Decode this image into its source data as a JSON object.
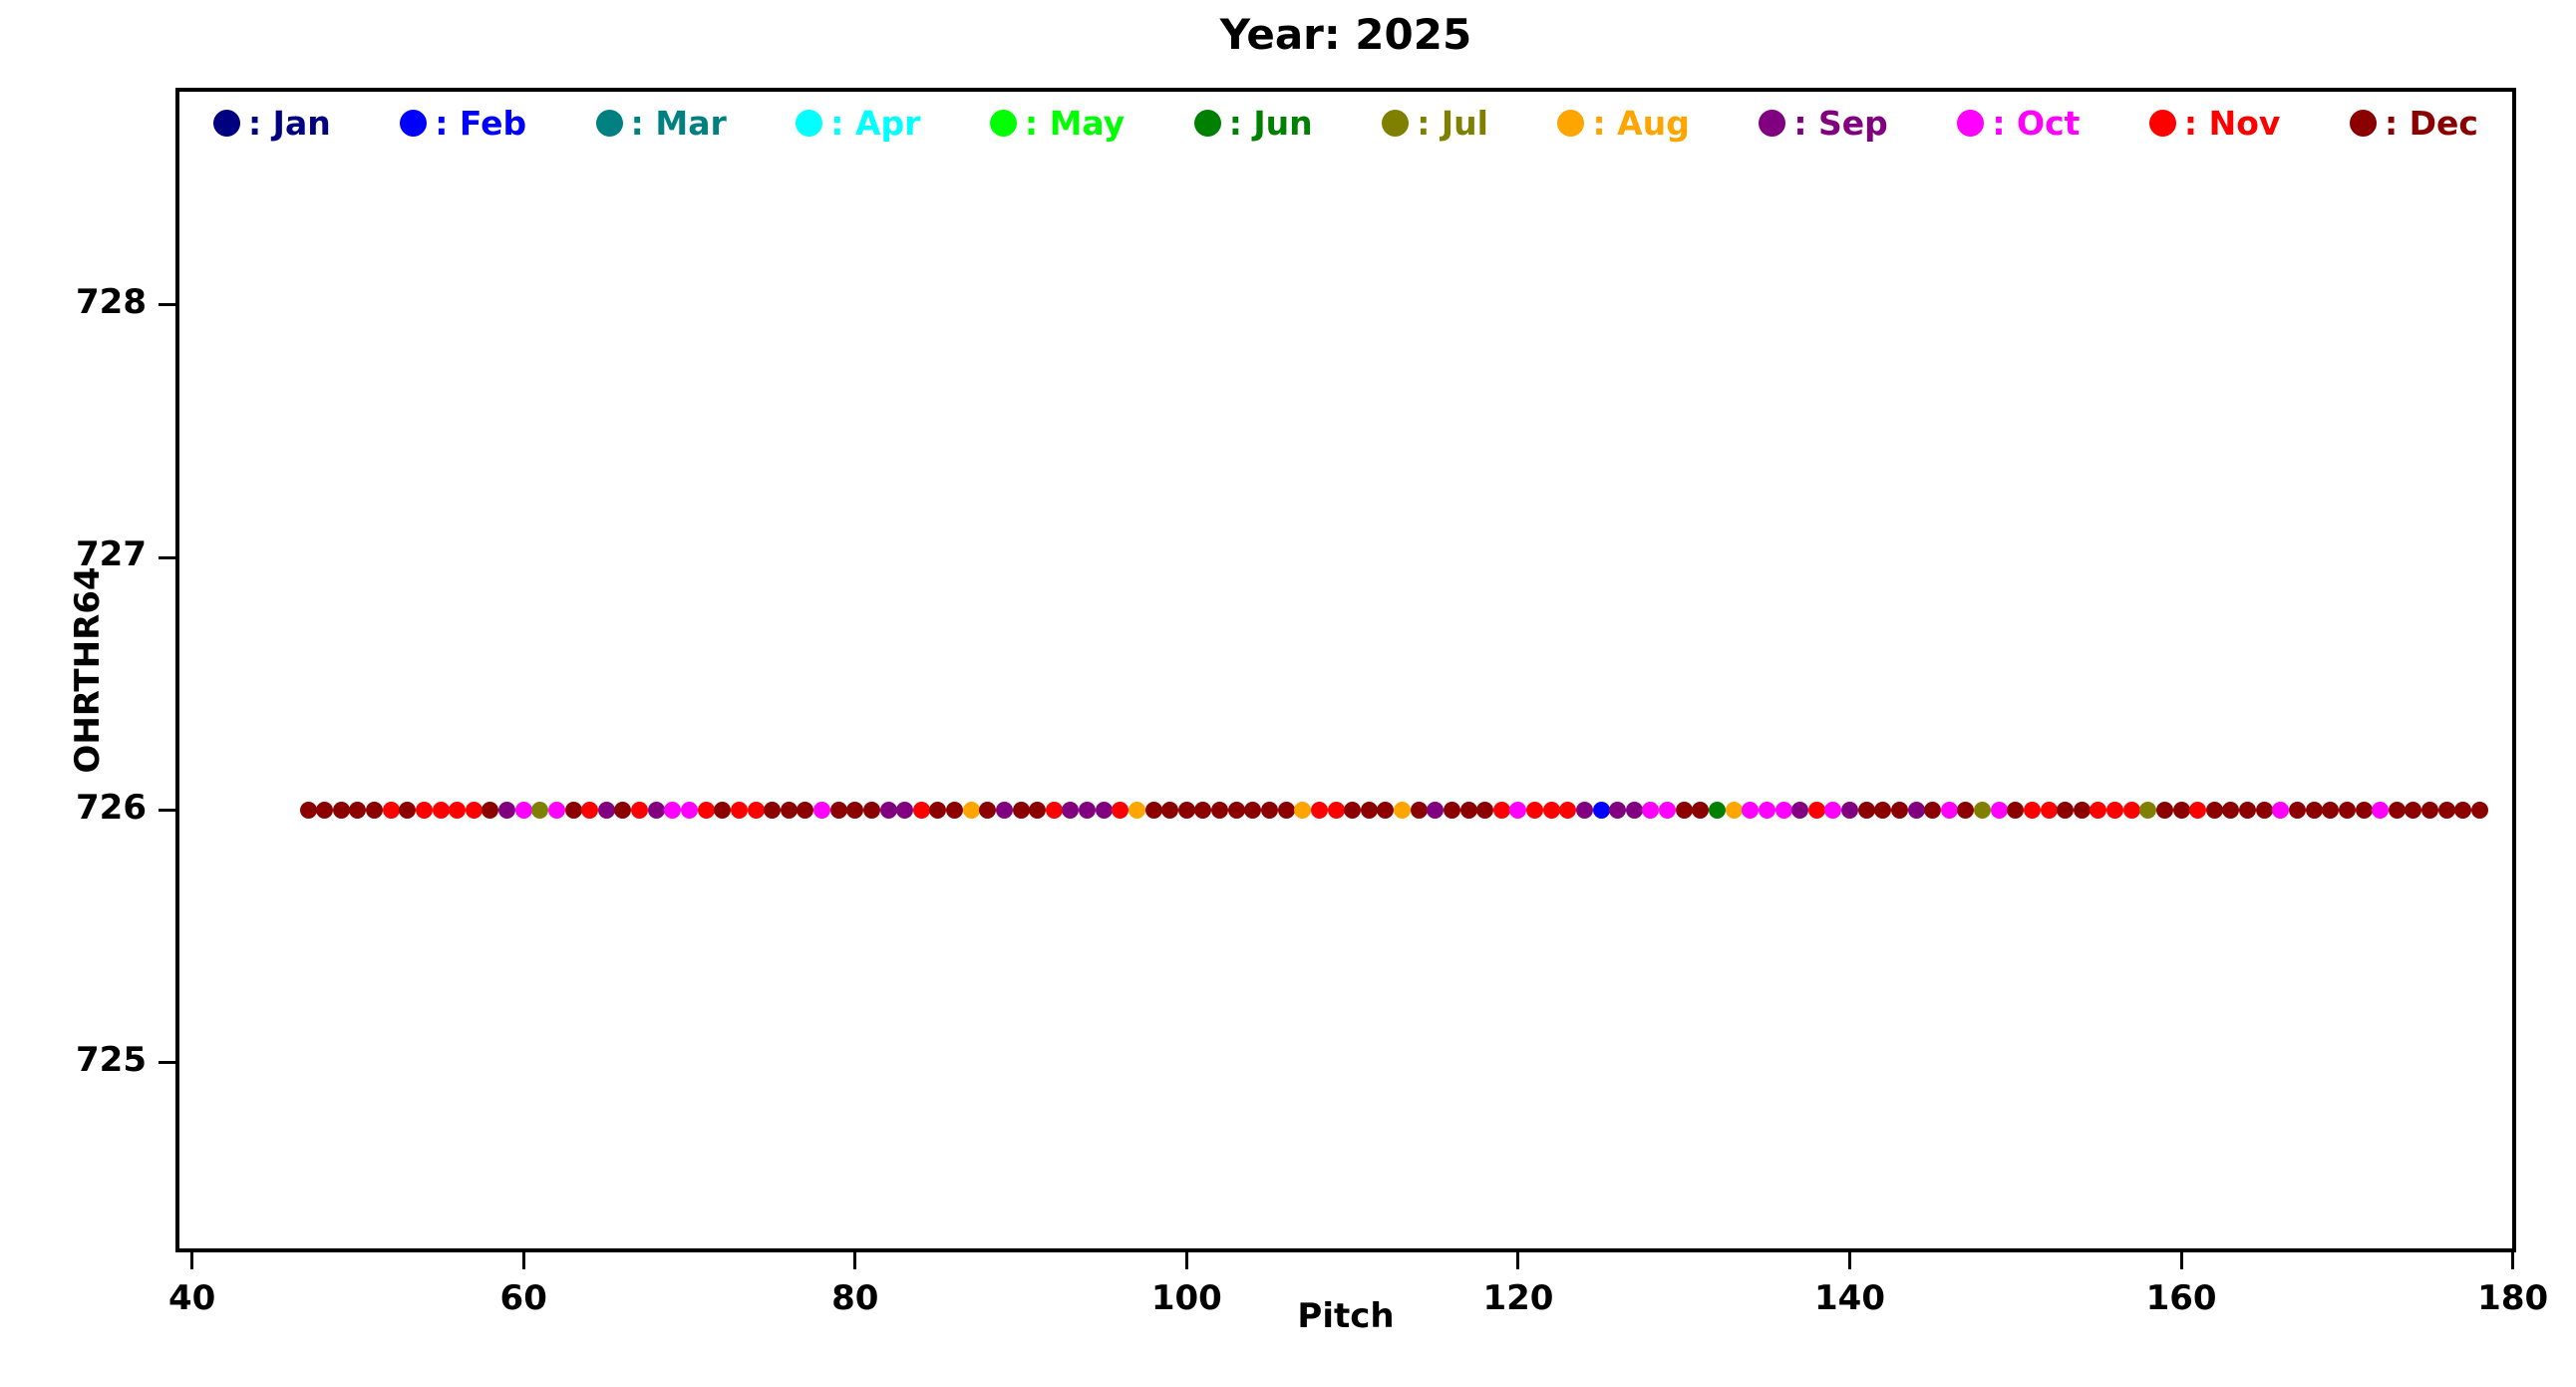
{
  "chart_data": {
    "type": "scatter",
    "title": "Year: 2025",
    "xlabel": "Pitch",
    "ylabel": "OHRTHR64",
    "xlim": [
      39.0,
      180.2
    ],
    "ylim": [
      724.25,
      728.86
    ],
    "xticks": [
      40,
      60,
      80,
      100,
      120,
      140,
      160,
      180
    ],
    "yticks": [
      725,
      726,
      727,
      728
    ],
    "grid": false,
    "legend_position": "top-inside-row",
    "legend_separator": ": ",
    "months": [
      {
        "label": "Jan",
        "color": "#000080"
      },
      {
        "label": "Feb",
        "color": "#0000FF"
      },
      {
        "label": "Mar",
        "color": "#008080"
      },
      {
        "label": "Apr",
        "color": "#00FFFF"
      },
      {
        "label": "May",
        "color": "#00FF00"
      },
      {
        "label": "Jun",
        "color": "#008000"
      },
      {
        "label": "Jul",
        "color": "#808000"
      },
      {
        "label": "Aug",
        "color": "#FFA500"
      },
      {
        "label": "Sep",
        "color": "#800080"
      },
      {
        "label": "Oct",
        "color": "#FF00FF"
      },
      {
        "label": "Nov",
        "color": "#FF0000"
      },
      {
        "label": "Dec",
        "color": "#8B0000"
      }
    ],
    "y_value": 726,
    "points": {
      "x_start": 47,
      "x_step": 1,
      "months": [
        "Dec",
        "Dec",
        "Dec",
        "Dec",
        "Dec",
        "Nov",
        "Dec",
        "Nov",
        "Nov",
        "Nov",
        "Nov",
        "Dec",
        "Sep",
        "Oct",
        "Jul",
        "Oct",
        "Dec",
        "Nov",
        "Sep",
        "Dec",
        "Nov",
        "Sep",
        "Oct",
        "Oct",
        "Nov",
        "Dec",
        "Nov",
        "Nov",
        "Dec",
        "Dec",
        "Dec",
        "Oct",
        "Dec",
        "Dec",
        "Dec",
        "Sep",
        "Sep",
        "Nov",
        "Dec",
        "Dec",
        "Aug",
        "Dec",
        "Sep",
        "Dec",
        "Dec",
        "Nov",
        "Sep",
        "Sep",
        "Sep",
        "Nov",
        "Aug",
        "Dec",
        "Dec",
        "Dec",
        "Dec",
        "Dec",
        "Dec",
        "Dec",
        "Dec",
        "Dec",
        "Aug",
        "Nov",
        "Nov",
        "Dec",
        "Dec",
        "Dec",
        "Aug",
        "Dec",
        "Sep",
        "Dec",
        "Dec",
        "Dec",
        "Nov",
        "Oct",
        "Nov",
        "Nov",
        "Nov",
        "Sep",
        "Feb",
        "Sep",
        "Sep",
        "Oct",
        "Oct",
        "Dec",
        "Dec",
        "Jun",
        "Aug",
        "Oct",
        "Oct",
        "Oct",
        "Sep",
        "Nov",
        "Oct",
        "Sep",
        "Dec",
        "Dec",
        "Dec",
        "Sep",
        "Dec",
        "Oct",
        "Dec",
        "Jul",
        "Oct",
        "Dec",
        "Nov",
        "Nov",
        "Dec",
        "Dec",
        "Nov",
        "Nov",
        "Nov",
        "Jul",
        "Dec",
        "Dec",
        "Nov",
        "Dec",
        "Dec",
        "Dec",
        "Dec",
        "Oct",
        "Dec",
        "Dec",
        "Dec",
        "Dec",
        "Dec",
        "Oct",
        "Dec",
        "Dec",
        "Dec",
        "Dec",
        "Dec",
        "Dec"
      ]
    }
  }
}
